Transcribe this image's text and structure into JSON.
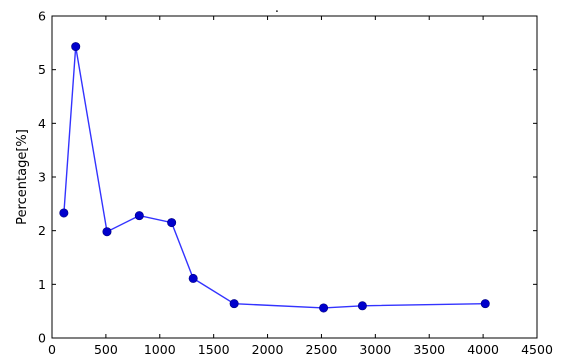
{
  "chart_data": {
    "type": "line",
    "title": ".",
    "xlabel": "",
    "ylabel": "Percentage[%]",
    "xlim": [
      0,
      4500
    ],
    "ylim": [
      0,
      6
    ],
    "xticks": [
      0,
      500,
      1000,
      1500,
      2000,
      2500,
      3000,
      3500,
      4000,
      4500
    ],
    "yticks": [
      0,
      1,
      2,
      3,
      4,
      5,
      6
    ],
    "grid": false,
    "colors": {
      "line": "#3333ff",
      "marker": "#0000cc"
    },
    "series": [
      {
        "x": [
          110,
          220,
          510,
          810,
          1110,
          1310,
          1690,
          2520,
          2880,
          4020
        ],
        "y": [
          2.33,
          5.43,
          1.98,
          2.28,
          2.15,
          1.11,
          0.64,
          0.56,
          0.6,
          0.64
        ]
      }
    ]
  }
}
